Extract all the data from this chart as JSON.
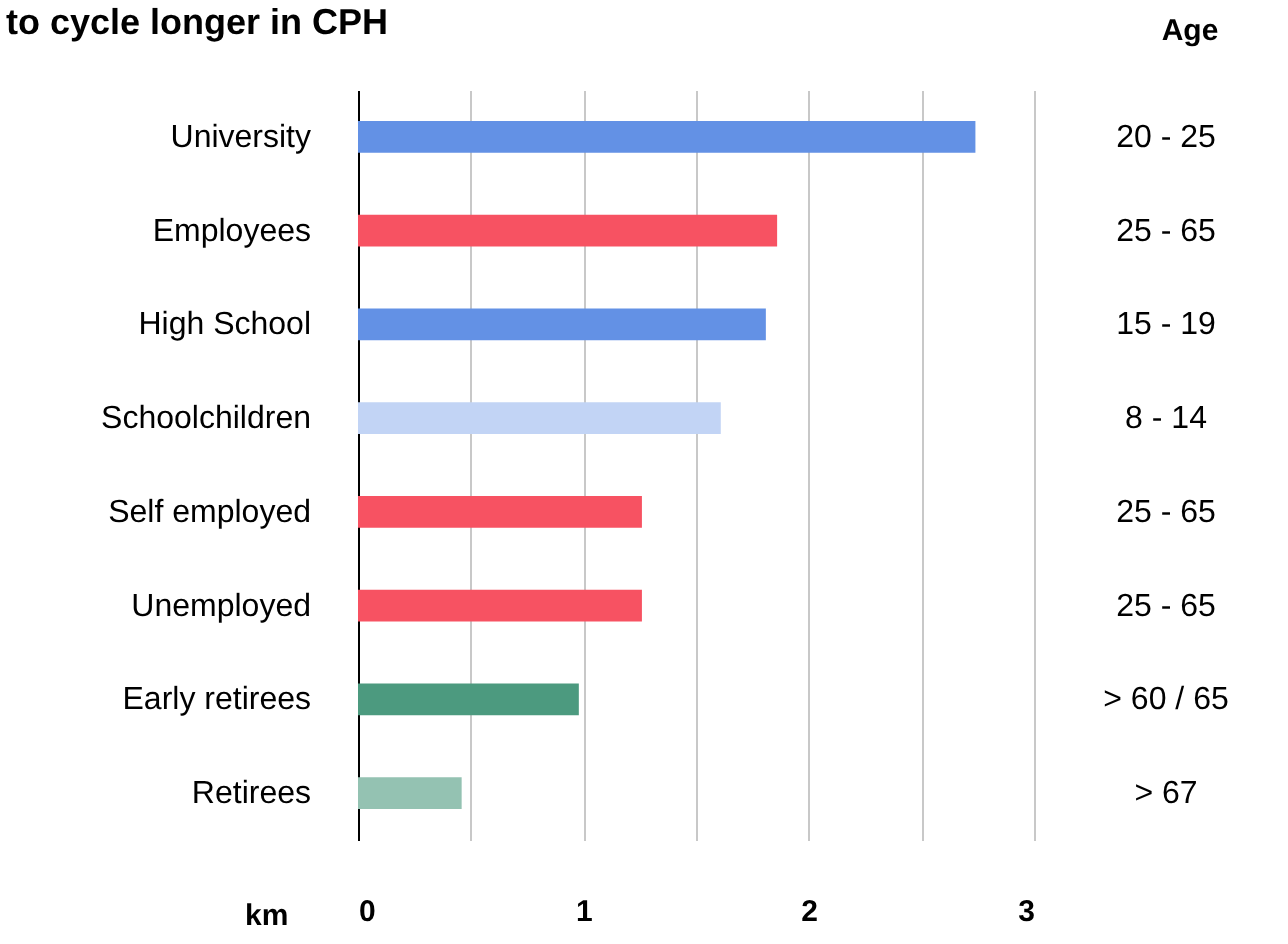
{
  "chart_data": {
    "type": "bar",
    "orientation": "horizontal",
    "title": "to cycle longer in CPH",
    "xlabel": "km",
    "categories": [
      "University",
      "Employees",
      "High School",
      "Schoolchildren",
      "Self employed",
      "Unemployed",
      "Early retirees",
      "Retirees"
    ],
    "values": [
      2.74,
      1.86,
      1.81,
      1.61,
      1.26,
      1.26,
      0.98,
      0.46
    ],
    "colors": [
      "#6391e5",
      "#f75262",
      "#6391e5",
      "#c2d4f5",
      "#f75262",
      "#f75262",
      "#4c9a7f",
      "#94c2b2"
    ],
    "xlim": [
      0,
      3
    ],
    "xticks": [
      0,
      {
        "value": 0.5,
        "label": null
      },
      1,
      {
        "value": 1.5,
        "label": null
      },
      2,
      {
        "value": 2.5,
        "label": null
      },
      3
    ],
    "grid": "x",
    "annotations": [
      "Age",
      "20 - 25",
      "25 - 65",
      "15 - 19",
      "8 - 14",
      "25 - 65",
      "25 - 65",
      "> 60 / 65",
      "> 67"
    ]
  }
}
